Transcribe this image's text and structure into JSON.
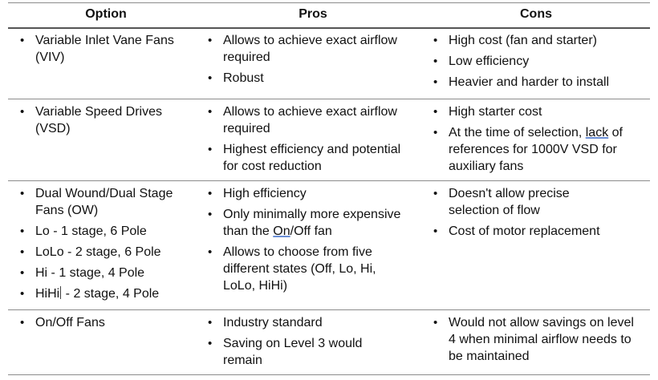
{
  "headers": {
    "option": "Option",
    "pros": "Pros",
    "cons": "Cons"
  },
  "rows": [
    {
      "option": [
        "Variable Inlet Vane Fans (VIV)"
      ],
      "pros": [
        "Allows to achieve exact airflow required",
        "Robust"
      ],
      "cons": [
        "High cost (fan and starter)",
        "Low efficiency",
        "Heavier and harder to install"
      ]
    },
    {
      "option": [
        "Variable Speed Drives (VSD)"
      ],
      "pros": [
        "Allows to achieve exact airflow required",
        "Highest efficiency and potential for cost reduction"
      ],
      "cons": [
        "High starter cost"
      ],
      "cons_rich": {
        "before": "At the time of selection, ",
        "underlined": "lack",
        "after": " of references for 1000V VSD for auxiliary fans"
      }
    },
    {
      "option": [
        "Dual Wound/Dual Stage Fans (OW)",
        "Lo -  1 stage, 6 Pole",
        "LoLo -  2 stage, 6 Pole",
        "Hi -  1 stage, 4 Pole"
      ],
      "option_rich": {
        "before": "HiHi",
        "after": " -  2 stage, 4 Pole"
      },
      "pros": [
        "High efficiency"
      ],
      "pros_rich": {
        "before": "Only minimally more expensive than the ",
        "underlined": "On",
        "after": "/Off fan"
      },
      "pros_last": "Allows to choose from five different states (Off, Lo, Hi, LoLo, HiHi)",
      "cons": [
        "Doesn't allow precise selection of flow",
        "Cost of motor replacement"
      ]
    },
    {
      "option": [
        "On/Off Fans"
      ],
      "pros": [
        "Industry standard",
        "Saving on Level 3 would remain"
      ],
      "cons": [
        "Would not allow savings on level 4 when minimal airflow needs to be maintained"
      ]
    }
  ]
}
